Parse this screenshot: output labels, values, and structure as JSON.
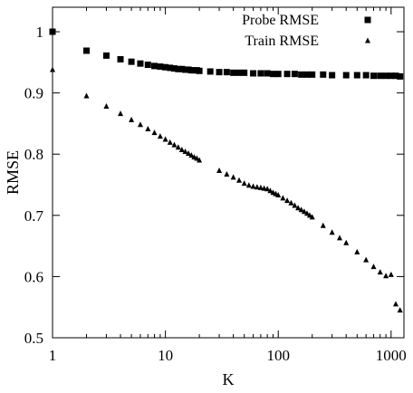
{
  "chart_data": {
    "type": "scatter",
    "xlabel": "K",
    "ylabel": "RMSE",
    "xscale": "log",
    "xlim": [
      1,
      1300
    ],
    "ylim": [
      0.5,
      1.04
    ],
    "xticks": [
      1,
      10,
      100,
      1000
    ],
    "xtick_labels": [
      "1",
      "10",
      "100",
      "1000"
    ],
    "yticks": [
      0.5,
      0.6,
      0.7,
      0.8,
      0.9,
      1.0
    ],
    "ytick_labels": [
      "0.5",
      "0.6",
      "0.7",
      "0.8",
      "0.9",
      "1"
    ],
    "grid": false,
    "legend_position": "top-right",
    "series": [
      {
        "name": "Probe RMSE",
        "marker": "square",
        "color": "#000000",
        "x": [
          1,
          2,
          3,
          4,
          5,
          6,
          7,
          8,
          9,
          10,
          11,
          12,
          13,
          14,
          15,
          16,
          17,
          18,
          19,
          20,
          25,
          30,
          35,
          40,
          45,
          50,
          60,
          70,
          80,
          90,
          100,
          120,
          140,
          160,
          180,
          200,
          250,
          300,
          400,
          500,
          600,
          700,
          800,
          900,
          1000,
          1100,
          1200
        ],
        "y": [
          1.0,
          0.969,
          0.961,
          0.955,
          0.951,
          0.948,
          0.946,
          0.944,
          0.943,
          0.942,
          0.941,
          0.94,
          0.939,
          0.939,
          0.938,
          0.938,
          0.937,
          0.937,
          0.937,
          0.936,
          0.935,
          0.934,
          0.934,
          0.933,
          0.933,
          0.933,
          0.932,
          0.932,
          0.932,
          0.931,
          0.931,
          0.931,
          0.931,
          0.93,
          0.93,
          0.93,
          0.93,
          0.929,
          0.929,
          0.929,
          0.929,
          0.928,
          0.928,
          0.928,
          0.928,
          0.928,
          0.927
        ]
      },
      {
        "name": "Train RMSE",
        "marker": "triangle",
        "color": "#000000",
        "x": [
          1,
          2,
          3,
          4,
          5,
          6,
          7,
          8,
          9,
          10,
          11,
          12,
          13,
          14,
          15,
          16,
          17,
          18,
          19,
          20,
          30,
          35,
          40,
          45,
          50,
          55,
          60,
          65,
          70,
          75,
          80,
          85,
          90,
          95,
          100,
          110,
          120,
          130,
          140,
          150,
          160,
          170,
          180,
          190,
          200,
          250,
          300,
          350,
          400,
          500,
          600,
          700,
          800,
          900,
          1000,
          1100,
          1200
        ],
        "y": [
          0.938,
          0.895,
          0.878,
          0.866,
          0.856,
          0.848,
          0.841,
          0.835,
          0.829,
          0.824,
          0.819,
          0.815,
          0.811,
          0.807,
          0.804,
          0.801,
          0.798,
          0.795,
          0.793,
          0.79,
          0.773,
          0.767,
          0.762,
          0.757,
          0.752,
          0.749,
          0.747,
          0.746,
          0.745,
          0.744,
          0.743,
          0.74,
          0.737,
          0.735,
          0.733,
          0.728,
          0.724,
          0.72,
          0.716,
          0.712,
          0.709,
          0.706,
          0.703,
          0.7,
          0.697,
          0.683,
          0.672,
          0.663,
          0.655,
          0.64,
          0.627,
          0.616,
          0.607,
          0.601,
          0.603,
          0.555,
          0.545
        ]
      }
    ]
  }
}
